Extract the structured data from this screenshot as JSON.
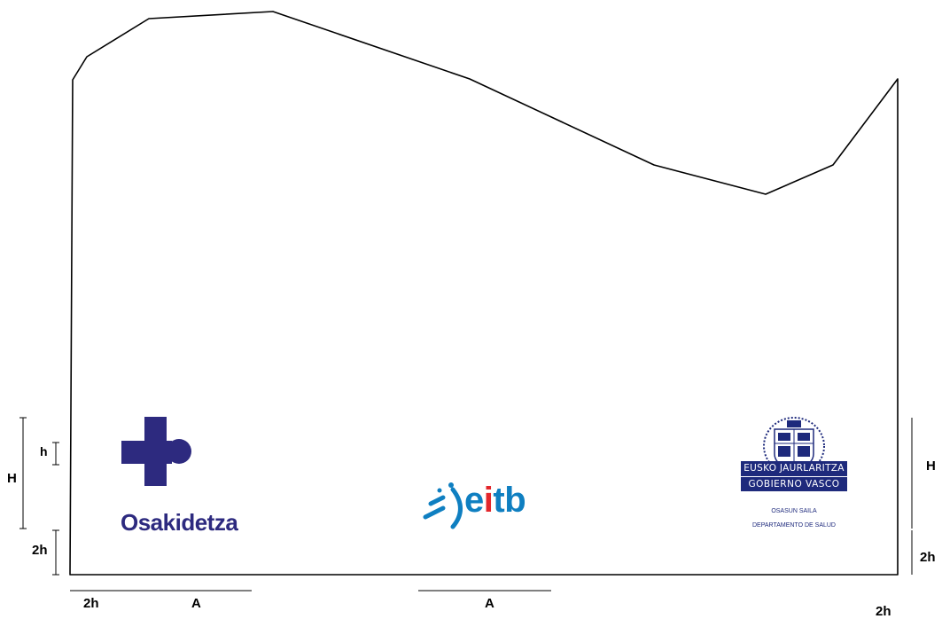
{
  "dimension_labels": {
    "left_H": "H",
    "left_h": "h",
    "left_2h": "2h",
    "right_H": "H",
    "right_2h": "2h",
    "bottom_2h_left": "2h",
    "bottom_A_left": "A",
    "bottom_A_center": "A",
    "bottom_2h_right": "2h"
  },
  "logos": {
    "osakidetza": {
      "name": "Osakidetza",
      "color": "#2d2a7f"
    },
    "eitb": {
      "e": "e",
      "i": "i",
      "tb": "tb",
      "blue": "#0f7fc1",
      "red": "#e3262b"
    },
    "gobierno_vasco": {
      "line1": "EUSKO JAURLARITZA",
      "line2": "GOBIERNO VASCO",
      "sub1": "OSASUN SAILA",
      "sub2": "DEPARTAMENTO DE SALUD",
      "color": "#1e2a7c"
    }
  }
}
